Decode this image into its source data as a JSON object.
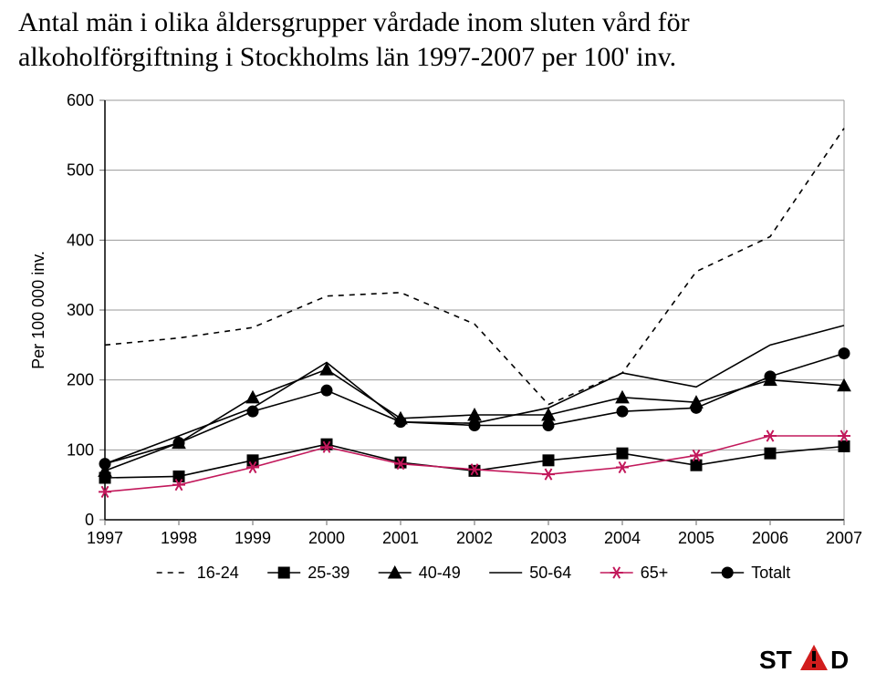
{
  "title_line1": "Antal män i olika åldersgrupper vårdade inom sluten vård för",
  "title_line2": "alkoholförgiftning i Stockholms län 1997-2007 per 100' inv.",
  "title_fontsize": 30,
  "chart": {
    "type": "line",
    "background_color": "#ffffff",
    "grid_color": "#999999",
    "axis_color": "#000000",
    "tick_label_fontsize": 18,
    "tick_color": "#666666",
    "x": {
      "categories": [
        "1997",
        "1998",
        "1999",
        "2000",
        "2001",
        "2002",
        "2003",
        "2004",
        "2005",
        "2006",
        "2007"
      ],
      "label": ""
    },
    "y": {
      "label": "Per 100 000 inv.",
      "ylim": [
        0,
        600
      ],
      "ticks": [
        0,
        100,
        200,
        300,
        400,
        500,
        600
      ]
    },
    "series": [
      {
        "name": "16-24",
        "color": "#000000",
        "marker": "none",
        "dash": "6,6",
        "line_width": 1.6,
        "values": [
          250,
          260,
          275,
          320,
          325,
          280,
          165,
          210,
          355,
          405,
          560
        ]
      },
      {
        "name": "25-39",
        "color": "#000000",
        "marker": "square-filled",
        "dash": "none",
        "line_width": 1.6,
        "values": [
          60,
          62,
          85,
          108,
          82,
          70,
          85,
          95,
          78,
          95,
          105
        ]
      },
      {
        "name": "40-49",
        "color": "#000000",
        "marker": "triangle-filled",
        "dash": "none",
        "line_width": 1.6,
        "values": [
          70,
          110,
          175,
          215,
          145,
          150,
          150,
          175,
          168,
          200,
          192
        ]
      },
      {
        "name": "50-64",
        "color": "#000000",
        "marker": "none",
        "dash": "none",
        "line_width": 1.6,
        "values": [
          80,
          120,
          160,
          225,
          140,
          138,
          160,
          210,
          190,
          250,
          278
        ]
      },
      {
        "name": "65+",
        "color": "#c2185b",
        "marker": "asterisk",
        "dash": "none",
        "line_width": 1.6,
        "values": [
          40,
          50,
          75,
          104,
          80,
          72,
          65,
          75,
          92,
          120,
          120
        ]
      },
      {
        "name": "Totalt",
        "color": "#000000",
        "marker": "circle-filled",
        "dash": "none",
        "line_width": 1.6,
        "values": [
          80,
          110,
          155,
          185,
          140,
          135,
          135,
          155,
          160,
          205,
          238
        ]
      }
    ],
    "legend": {
      "position": "below",
      "fontsize": 18,
      "items": [
        {
          "name": "16-24",
          "dash": "6,6",
          "marker": "none",
          "color": "#000000"
        },
        {
          "name": "25-39",
          "dash": "none",
          "marker": "square-filled",
          "color": "#000000"
        },
        {
          "name": "40-49",
          "dash": "none",
          "marker": "triangle-filled",
          "color": "#000000"
        },
        {
          "name": "50-64",
          "dash": "none",
          "marker": "none",
          "color": "#000000"
        },
        {
          "name": "65+",
          "dash": "none",
          "marker": "asterisk",
          "color": "#c2185b"
        },
        {
          "name": "Totalt",
          "dash": "none",
          "marker": "circle-filled",
          "color": "#000000"
        }
      ]
    }
  },
  "logo": {
    "text": "ST   D",
    "triangle_color": "#d11d1d",
    "bar_color": "#000000",
    "text_color": "#000000"
  }
}
